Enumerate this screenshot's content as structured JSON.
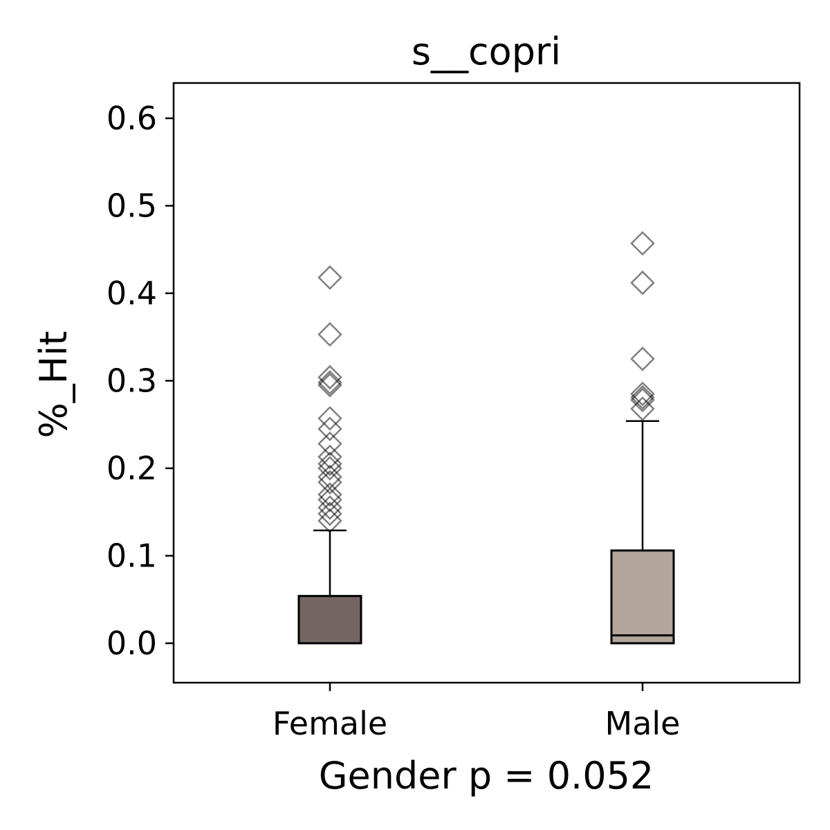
{
  "chart_data": {
    "type": "box",
    "title": "s__copri",
    "xlabel": "Gender p = 0.052",
    "ylabel": "%_Hit",
    "ylim": [
      -0.045,
      0.64
    ],
    "yticks": [
      "0.0",
      "0.1",
      "0.2",
      "0.3",
      "0.4",
      "0.5",
      "0.6"
    ],
    "grid": false,
    "categories": [
      "Female",
      "Male"
    ],
    "boxes": [
      {
        "name": "Female",
        "color": "#756663",
        "q1": 0.0,
        "median": 0.0,
        "q3": 0.054,
        "whisker_low": 0.0,
        "whisker_high": 0.129,
        "outliers": [
          0.418,
          0.353,
          0.304,
          0.298,
          0.295,
          0.257,
          0.245,
          0.228,
          0.213,
          0.205,
          0.2,
          0.19,
          0.184,
          0.17,
          0.164,
          0.155,
          0.148,
          0.14
        ]
      },
      {
        "name": "Male",
        "color": "#b1a59c",
        "q1": 0.0,
        "median": 0.009,
        "q3": 0.106,
        "whisker_low": 0.0,
        "whisker_high": 0.254,
        "outliers": [
          0.457,
          0.412,
          0.325,
          0.285,
          0.281,
          0.278,
          0.268
        ]
      }
    ]
  }
}
